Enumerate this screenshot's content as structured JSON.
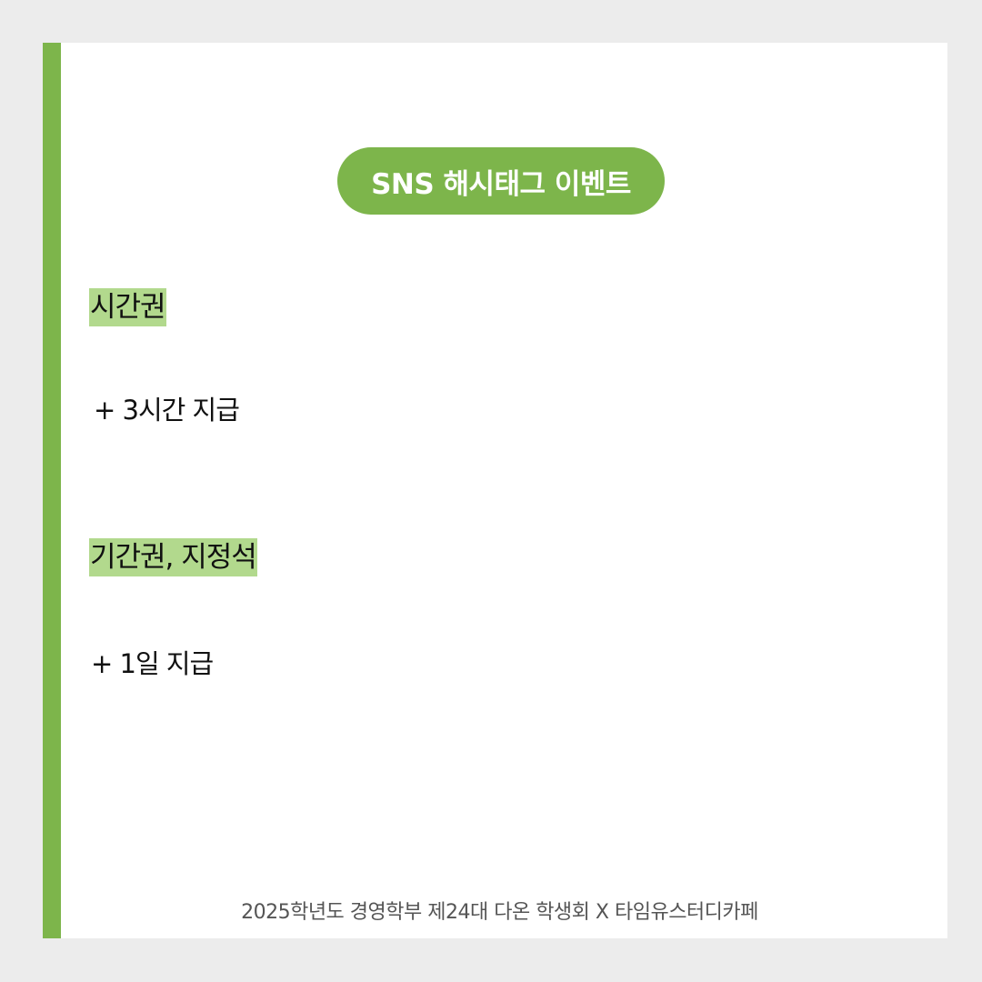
{
  "title": "SNS 해시태그 이벤트",
  "sections": [
    {
      "heading": "시간권",
      "benefit": "+ 3시간 지급"
    },
    {
      "heading": "기간권, 지정석",
      "benefit": "+ 1일 지급"
    }
  ],
  "footer": "2025학년도 경영학부 제24대 다온 학생회 X 타임유스터디카페",
  "colors": {
    "accent": "#7db54b",
    "highlight": "#b2d98d",
    "background": "#ececec",
    "card": "#ffffff"
  }
}
